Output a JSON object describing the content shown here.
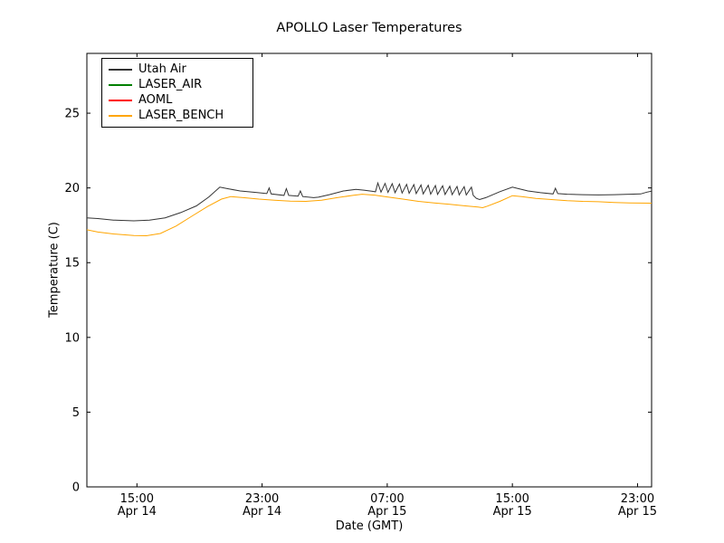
{
  "chart_data": {
    "type": "line",
    "title": "APOLLO Laser Temperatures",
    "xlabel": "Date (GMT)",
    "ylabel": "Temperature (C)",
    "x_unit": "hours since Apr 14 00:00 GMT",
    "xlim": [
      11.8,
      47.9
    ],
    "ylim": [
      0,
      29
    ],
    "grid": false,
    "legend_position": "upper left",
    "y_ticks": [
      0,
      5,
      10,
      15,
      20,
      25
    ],
    "x_ticks": [
      {
        "value": 15,
        "line1": "15:00",
        "line2": "Apr 14"
      },
      {
        "value": 23,
        "line1": "23:00",
        "line2": "Apr 14"
      },
      {
        "value": 31,
        "line1": "07:00",
        "line2": "Apr 15"
      },
      {
        "value": 39,
        "line1": "15:00",
        "line2": "Apr 15"
      },
      {
        "value": 47,
        "line1": "23:00",
        "line2": "Apr 15"
      }
    ],
    "series": [
      {
        "name": "Utah Air",
        "color": "#333333",
        "points": [
          [
            11.8,
            18.0
          ],
          [
            12.5,
            17.95
          ],
          [
            13.5,
            17.85
          ],
          [
            14.8,
            17.8
          ],
          [
            15.8,
            17.85
          ],
          [
            16.8,
            18.0
          ],
          [
            17.8,
            18.35
          ],
          [
            18.8,
            18.8
          ],
          [
            19.6,
            19.4
          ],
          [
            20.3,
            20.05
          ],
          [
            20.8,
            19.95
          ],
          [
            21.6,
            19.8
          ],
          [
            22.6,
            19.7
          ],
          [
            23.3,
            19.62
          ],
          [
            23.45,
            20.0
          ],
          [
            23.58,
            19.6
          ],
          [
            24.4,
            19.5
          ],
          [
            24.55,
            19.95
          ],
          [
            24.7,
            19.5
          ],
          [
            25.3,
            19.45
          ],
          [
            25.45,
            19.8
          ],
          [
            25.6,
            19.42
          ],
          [
            26.3,
            19.35
          ],
          [
            26.6,
            19.38
          ],
          [
            27.3,
            19.55
          ],
          [
            28.2,
            19.8
          ],
          [
            29.0,
            19.9
          ],
          [
            29.5,
            19.85
          ],
          [
            30.0,
            19.78
          ],
          [
            30.25,
            19.74
          ],
          [
            30.4,
            20.33
          ],
          [
            30.6,
            19.72
          ],
          [
            30.86,
            20.3
          ],
          [
            31.05,
            19.7
          ],
          [
            31.32,
            20.28
          ],
          [
            31.5,
            19.68
          ],
          [
            31.78,
            20.26
          ],
          [
            31.95,
            19.66
          ],
          [
            32.24,
            20.24
          ],
          [
            32.4,
            19.64
          ],
          [
            32.7,
            20.22
          ],
          [
            32.85,
            19.62
          ],
          [
            33.16,
            20.2
          ],
          [
            33.3,
            19.6
          ],
          [
            33.62,
            20.18
          ],
          [
            33.78,
            19.58
          ],
          [
            34.08,
            20.16
          ],
          [
            34.22,
            19.57
          ],
          [
            34.54,
            20.14
          ],
          [
            34.7,
            19.56
          ],
          [
            35.0,
            20.12
          ],
          [
            35.15,
            19.55
          ],
          [
            35.46,
            20.1
          ],
          [
            35.6,
            19.54
          ],
          [
            35.92,
            20.08
          ],
          [
            36.05,
            19.53
          ],
          [
            36.38,
            20.05
          ],
          [
            36.5,
            19.5
          ],
          [
            36.7,
            19.3
          ],
          [
            36.9,
            19.22
          ],
          [
            37.3,
            19.35
          ],
          [
            38.2,
            19.75
          ],
          [
            39.0,
            20.05
          ],
          [
            39.4,
            19.95
          ],
          [
            40.0,
            19.8
          ],
          [
            40.8,
            19.68
          ],
          [
            41.6,
            19.6
          ],
          [
            41.75,
            19.98
          ],
          [
            41.9,
            19.62
          ],
          [
            42.5,
            19.58
          ],
          [
            43.5,
            19.55
          ],
          [
            44.5,
            19.53
          ],
          [
            45.5,
            19.55
          ],
          [
            46.5,
            19.58
          ],
          [
            47.2,
            19.6
          ],
          [
            47.6,
            19.72
          ],
          [
            47.9,
            19.78
          ]
        ]
      },
      {
        "name": "LASER_AIR",
        "color": "#008000",
        "points": []
      },
      {
        "name": "AOML",
        "color": "#ff0000",
        "points": []
      },
      {
        "name": "LASER_BENCH",
        "color": "#ffa500",
        "points": [
          [
            11.8,
            17.2
          ],
          [
            12.5,
            17.05
          ],
          [
            13.5,
            16.92
          ],
          [
            14.8,
            16.82
          ],
          [
            15.6,
            16.8
          ],
          [
            16.5,
            16.95
          ],
          [
            17.5,
            17.45
          ],
          [
            18.5,
            18.1
          ],
          [
            19.5,
            18.75
          ],
          [
            20.4,
            19.25
          ],
          [
            21.0,
            19.42
          ],
          [
            21.8,
            19.35
          ],
          [
            22.8,
            19.25
          ],
          [
            23.8,
            19.18
          ],
          [
            24.8,
            19.12
          ],
          [
            25.8,
            19.1
          ],
          [
            26.8,
            19.18
          ],
          [
            27.8,
            19.35
          ],
          [
            28.8,
            19.5
          ],
          [
            29.4,
            19.58
          ],
          [
            30.2,
            19.52
          ],
          [
            31.0,
            19.4
          ],
          [
            32.0,
            19.25
          ],
          [
            33.0,
            19.1
          ],
          [
            34.0,
            19.0
          ],
          [
            35.0,
            18.9
          ],
          [
            36.0,
            18.8
          ],
          [
            36.8,
            18.72
          ],
          [
            37.1,
            18.68
          ],
          [
            37.4,
            18.78
          ],
          [
            38.2,
            19.1
          ],
          [
            39.0,
            19.48
          ],
          [
            39.6,
            19.42
          ],
          [
            40.5,
            19.3
          ],
          [
            41.5,
            19.22
          ],
          [
            42.5,
            19.15
          ],
          [
            43.5,
            19.1
          ],
          [
            44.5,
            19.08
          ],
          [
            45.5,
            19.03
          ],
          [
            46.5,
            19.0
          ],
          [
            47.9,
            18.98
          ]
        ]
      }
    ]
  }
}
